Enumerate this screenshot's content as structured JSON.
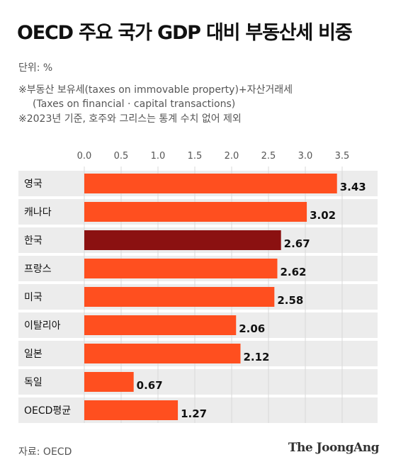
{
  "header": {
    "title": "OECD 주요 국가 GDP 대비 부동산세 비중",
    "unit": "단위: %",
    "note_line1": "※부동산 보유세(taxes on immovable property)+자산거래세",
    "note_line2": "(Taxes on financial · capital transactions)",
    "note_line3": "※2023년 기준, 호주와 그리스는 통계 수치 없어 제외"
  },
  "footer": {
    "source": "자료: OECD",
    "brand": "The JoongAng"
  },
  "colors": {
    "bar": "#ff4f1f",
    "highlight": "#8b1111",
    "row_bg": "#ececec",
    "grid": "#d9d9d9"
  },
  "chart_data": {
    "type": "bar",
    "orientation": "horizontal",
    "categories": [
      "영국",
      "캐나다",
      "한국",
      "프랑스",
      "미국",
      "이탈리아",
      "일본",
      "독일",
      "OECD평균"
    ],
    "values": [
      3.43,
      3.02,
      2.67,
      2.62,
      2.58,
      2.06,
      2.12,
      0.67,
      1.27
    ],
    "value_labels": [
      "3.43",
      "3.02",
      "2.67",
      "2.62",
      "2.58",
      "2.06",
      "2.12",
      "0.67",
      "1.27"
    ],
    "highlight_index": 2,
    "xlim": [
      0,
      3.5
    ],
    "xticks": [
      "0.0",
      "0.5",
      "1.0",
      "1.5",
      "2.0",
      "2.5",
      "3.0",
      "3.5"
    ],
    "grid": true,
    "xlabel": "",
    "ylabel": ""
  }
}
